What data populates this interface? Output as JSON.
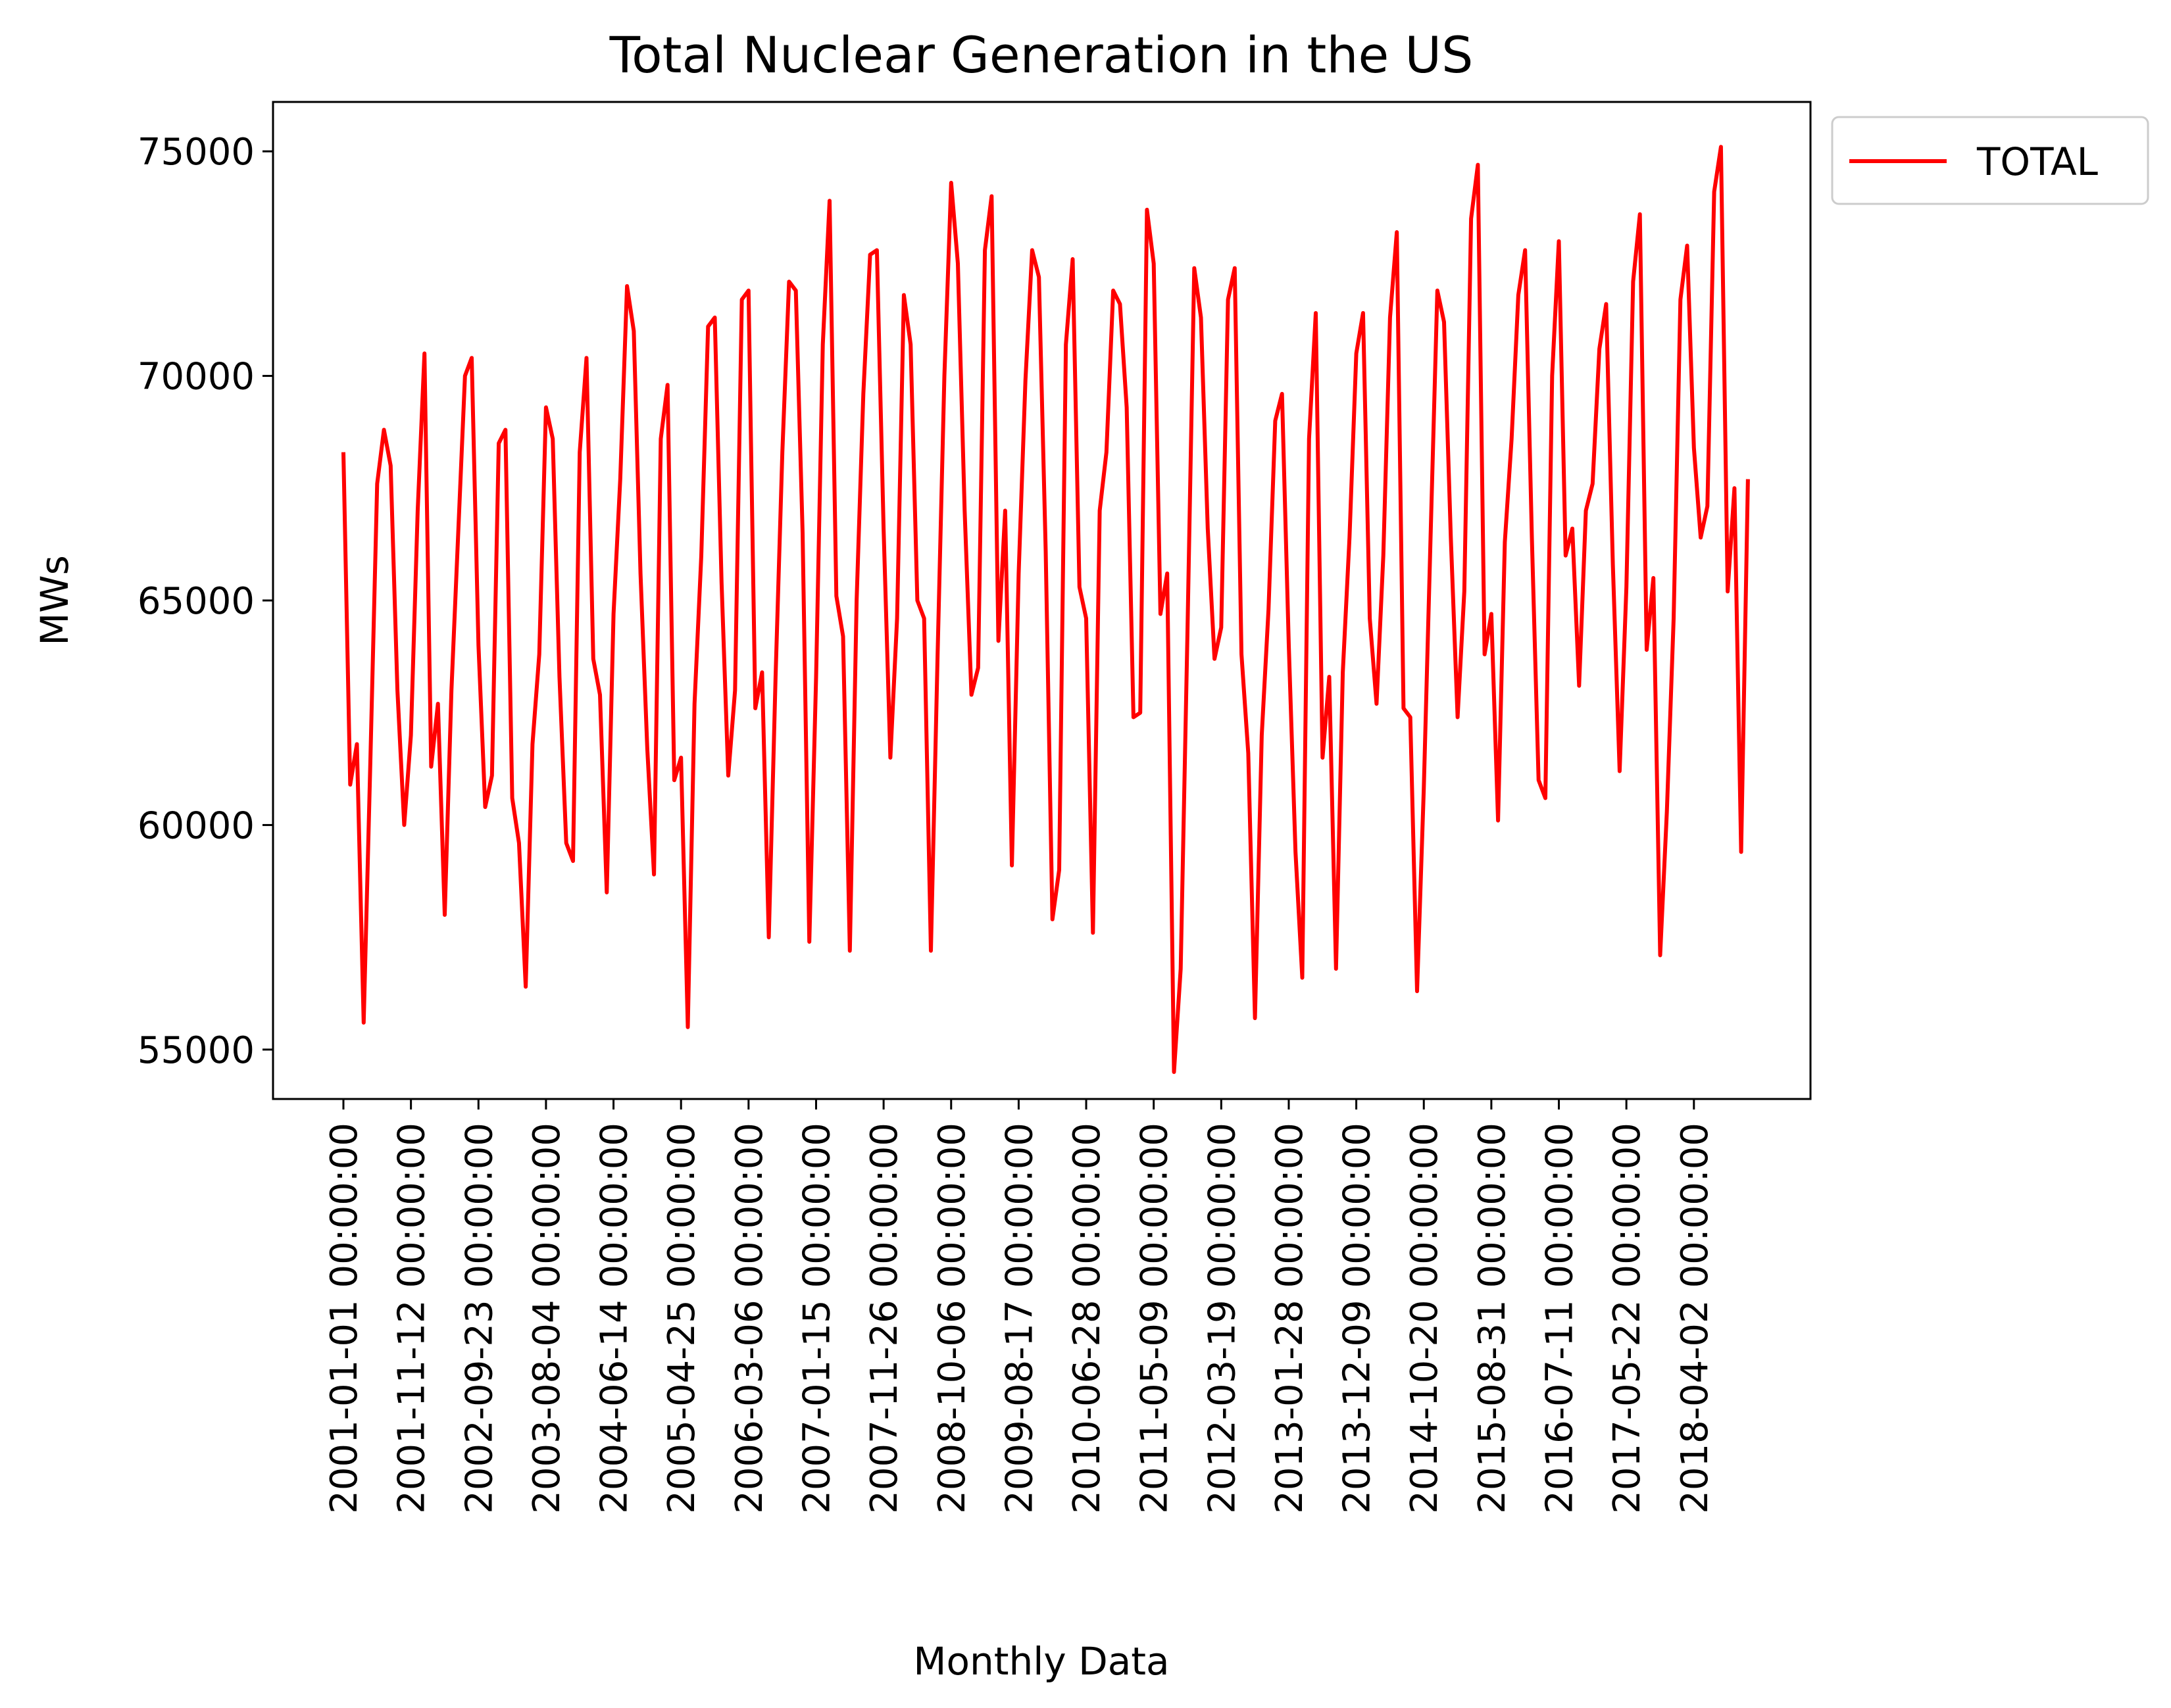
{
  "chart_data": {
    "type": "line",
    "title": "Total Nuclear Generation in the US",
    "xlabel": "Monthly Data",
    "ylabel": "MWs",
    "x_ticks": [
      "2001-01-01 00:00:00",
      "2001-11-12 00:00:00",
      "2002-09-23 00:00:00",
      "2003-08-04 00:00:00",
      "2004-06-14 00:00:00",
      "2005-04-25 00:00:00",
      "2006-03-06 00:00:00",
      "2007-01-15 00:00:00",
      "2007-11-26 00:00:00",
      "2008-10-06 00:00:00",
      "2009-08-17 00:00:00",
      "2010-06-28 00:00:00",
      "2011-05-09 00:00:00",
      "2012-03-19 00:00:00",
      "2013-01-28 00:00:00",
      "2013-12-09 00:00:00",
      "2014-10-20 00:00:00",
      "2015-08-31 00:00:00",
      "2016-07-11 00:00:00",
      "2017-05-22 00:00:00",
      "2018-04-02 00:00:00"
    ],
    "y_ticks": [
      55000,
      60000,
      65000,
      70000,
      75000
    ],
    "ylim": [
      53900,
      76100
    ],
    "legend_position": "outside upper right",
    "grid": false,
    "series": [
      {
        "name": "TOTAL",
        "color": "#ff0000",
        "values": [
          68300,
          60900,
          61800,
          55600,
          61500,
          67600,
          68800,
          68000,
          63000,
          60000,
          62000,
          67000,
          70500,
          61300,
          62700,
          58000,
          63000,
          66500,
          70000,
          70400,
          64000,
          60400,
          61100,
          68500,
          68800,
          60600,
          59600,
          56400,
          61800,
          63800,
          69300,
          68600,
          63300,
          59600,
          59200,
          68300,
          70400,
          63700,
          62900,
          58500,
          64700,
          67700,
          72000,
          71000,
          65600,
          61700,
          58900,
          68600,
          69800,
          61000,
          61500,
          55500,
          62700,
          66000,
          71100,
          71300,
          65400,
          61100,
          63000,
          71700,
          71900,
          62600,
          63400,
          57500,
          63300,
          68300,
          72100,
          71900,
          66500,
          57400,
          63300,
          70700,
          73900,
          65100,
          64200,
          57200,
          65000,
          69600,
          72700,
          72800,
          66600,
          61500,
          64600,
          71800,
          70700,
          65000,
          64600,
          57200,
          63800,
          70000,
          74300,
          72500,
          67000,
          62900,
          63500,
          72800,
          74000,
          64100,
          67000,
          59100,
          65600,
          69900,
          72800,
          72200,
          66100,
          57900,
          59000,
          70700,
          72600,
          65300,
          64600,
          57600,
          67000,
          68300,
          71900,
          71600,
          69300,
          62400,
          62500,
          73700,
          72500,
          64700,
          65600,
          54500,
          56800,
          64300,
          72400,
          71300,
          66600,
          63700,
          64400,
          71700,
          72400,
          63800,
          61600,
          55700,
          62000,
          64800,
          69000,
          69600,
          64000,
          59400,
          56600,
          68600,
          71400,
          61500,
          63300,
          56800,
          63400,
          66400,
          70500,
          71400,
          64600,
          62700,
          66000,
          71300,
          73200,
          62600,
          62400,
          56300,
          60800,
          66400,
          71900,
          71200,
          66400,
          62400,
          65200,
          73500,
          74700,
          63800,
          64700,
          60100,
          66300,
          68600,
          71800,
          72800,
          66400,
          61000,
          60600,
          70000,
          73000,
          66000,
          66600,
          63100,
          67000,
          67600,
          70600,
          71600,
          65800,
          61200,
          65300,
          72100,
          73600,
          63900,
          65500,
          57100,
          60300,
          64600,
          71700,
          72900,
          68400,
          66400,
          67100,
          74100,
          75100,
          65200,
          67500,
          59400,
          67700
        ]
      }
    ]
  }
}
